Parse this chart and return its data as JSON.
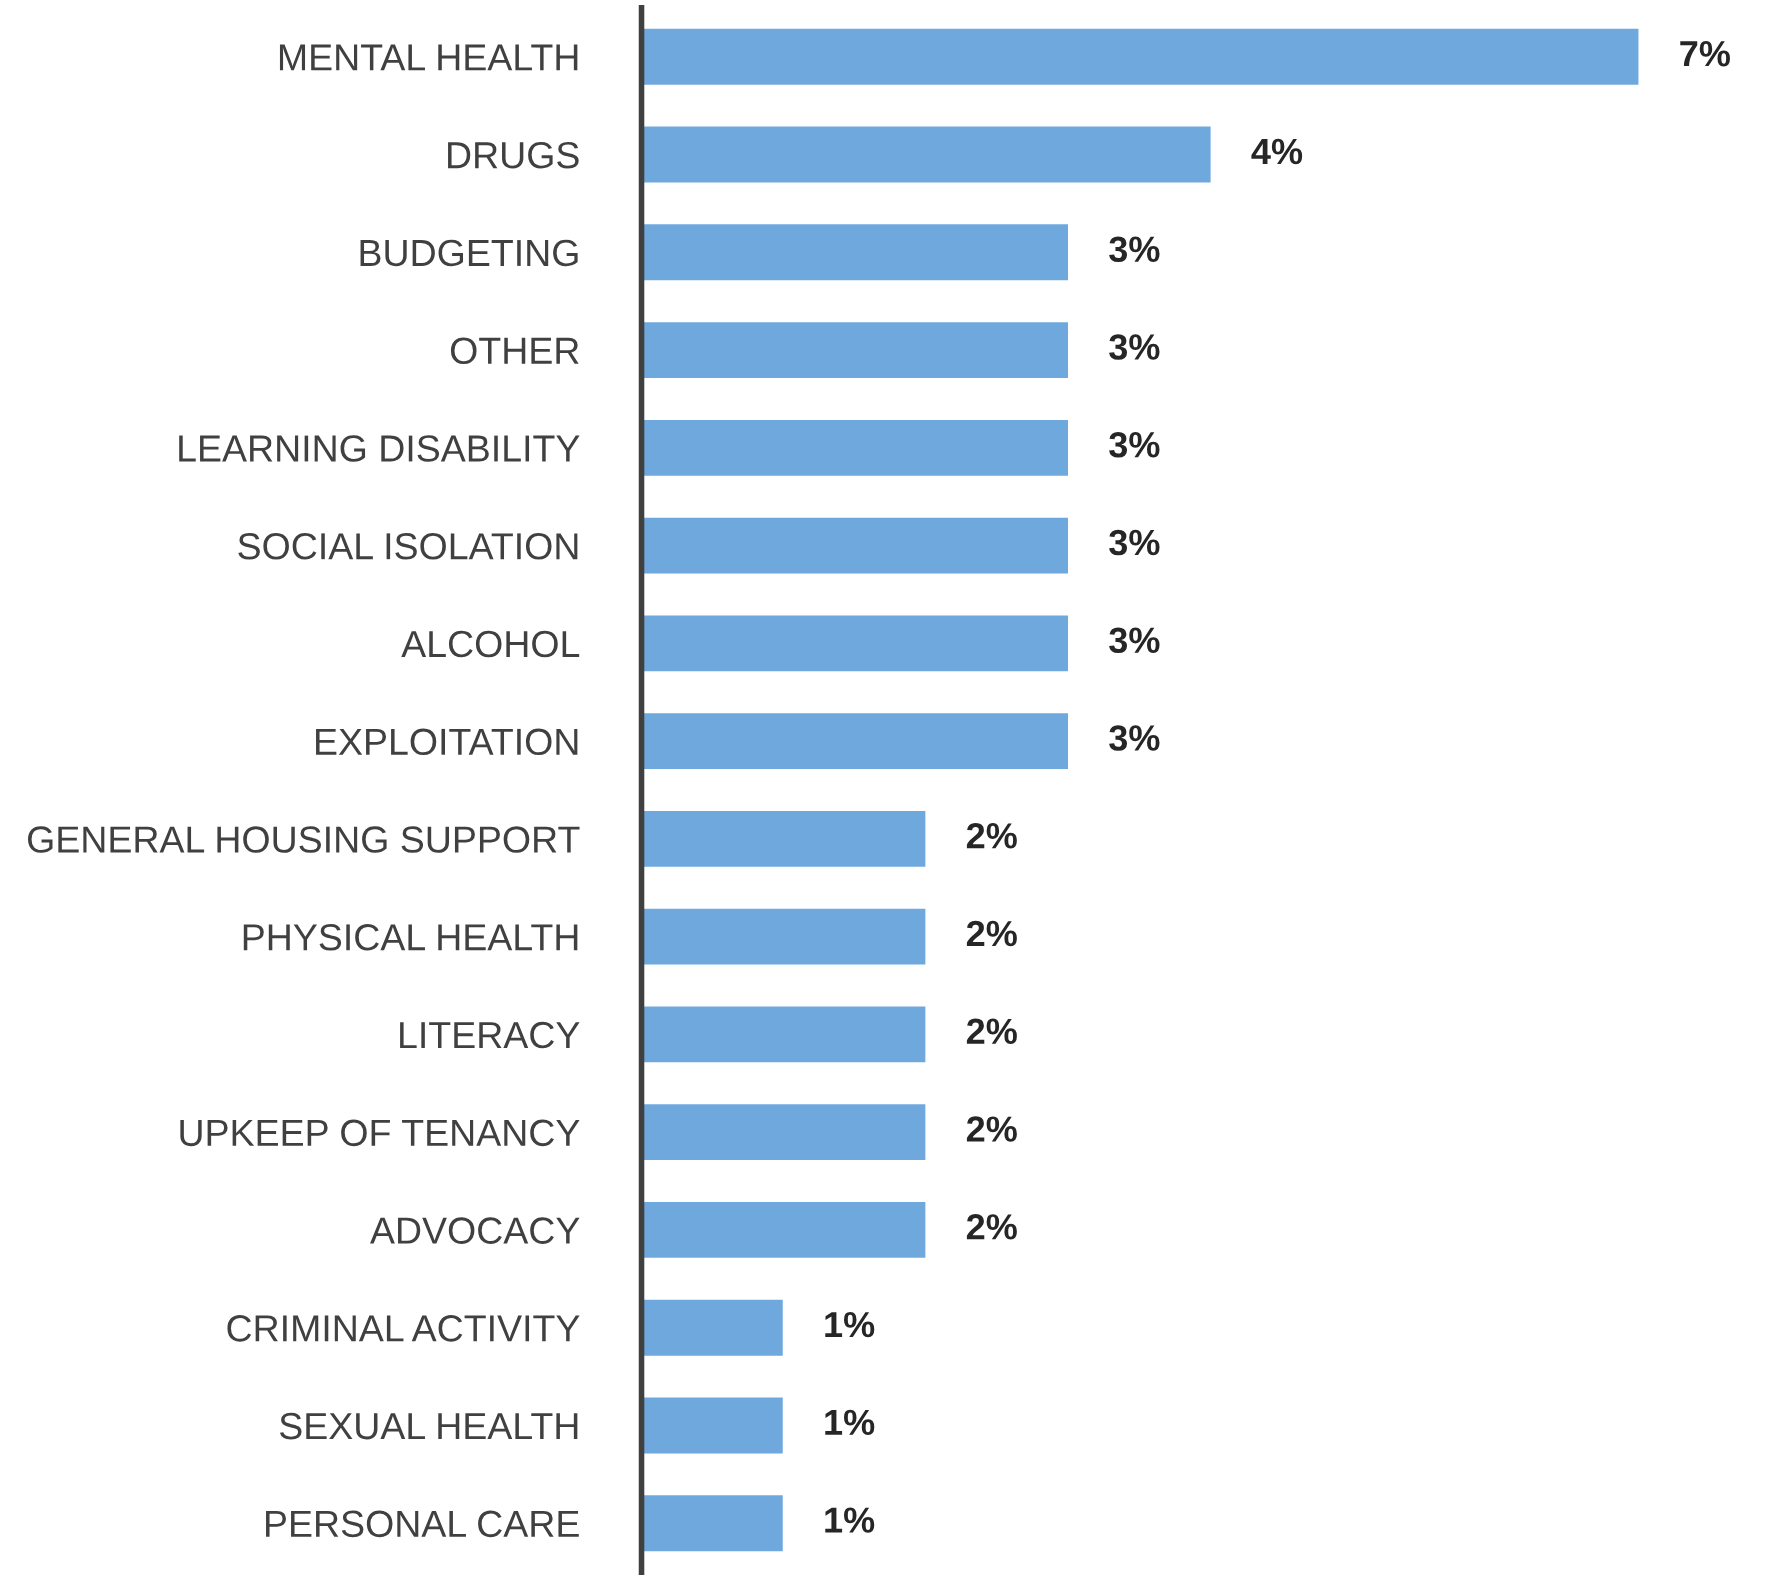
{
  "chart_data": {
    "type": "bar",
    "orientation": "horizontal",
    "categories": [
      "MENTAL HEALTH",
      "DRUGS",
      "BUDGETING",
      "OTHER",
      "LEARNING DISABILITY",
      "SOCIAL ISOLATION",
      "ALCOHOL",
      "EXPLOITATION",
      "GENERAL HOUSING SUPPORT",
      "PHYSICAL HEALTH",
      "LITERACY",
      "UPKEEP OF TENANCY",
      "ADVOCACY",
      "CRIMINAL ACTIVITY",
      "SEXUAL HEALTH",
      "PERSONAL CARE"
    ],
    "values": [
      7,
      4,
      3,
      3,
      3,
      3,
      3,
      3,
      2,
      2,
      2,
      2,
      2,
      1,
      1,
      1
    ],
    "value_labels": [
      "7%",
      "4%",
      "3%",
      "3%",
      "3%",
      "3%",
      "3%",
      "3%",
      "2%",
      "2%",
      "2%",
      "2%",
      "2%",
      "1%",
      "1%",
      "1%"
    ],
    "color": "#6fa8dc",
    "grid": false
  }
}
